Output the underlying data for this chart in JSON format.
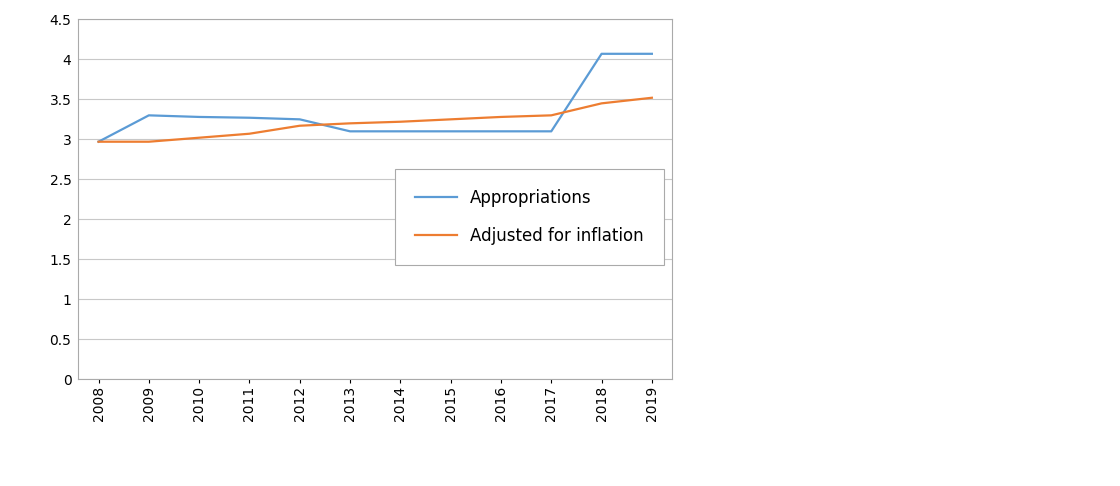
{
  "years": [
    2008,
    2009,
    2010,
    2011,
    2012,
    2013,
    2014,
    2015,
    2016,
    2017,
    2018,
    2019
  ],
  "appropriations": [
    2.97,
    3.3,
    3.28,
    3.27,
    3.25,
    3.1,
    3.1,
    3.1,
    3.1,
    3.1,
    4.07,
    4.07
  ],
  "adjusted_for_inflation": [
    2.97,
    2.97,
    3.02,
    3.07,
    3.17,
    3.2,
    3.22,
    3.25,
    3.28,
    3.3,
    3.45,
    3.52
  ],
  "appropriations_color": "#5B9BD5",
  "inflation_color": "#ED7D31",
  "ylim": [
    0,
    4.5
  ],
  "yticks": [
    0,
    0.5,
    1.0,
    1.5,
    2.0,
    2.5,
    3.0,
    3.5,
    4.0,
    4.5
  ],
  "legend_labels": [
    "Appropriations",
    "Adjusted for inflation"
  ],
  "background_color": "#ffffff",
  "grid_color": "#c8c8c8",
  "line_width": 1.6,
  "legend_fontsize": 12,
  "tick_fontsize": 10,
  "figure_border_color": "#aaaaaa"
}
